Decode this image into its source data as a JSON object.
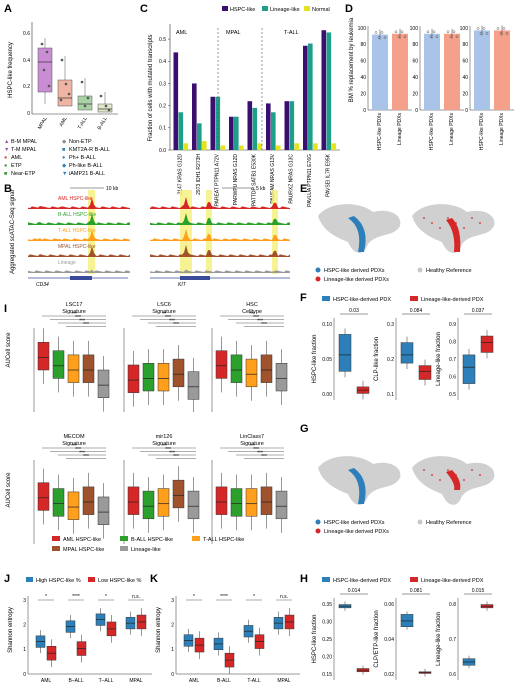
{
  "panels": {
    "A": {
      "letter": "A",
      "ylabel": "HSPC-like frequency",
      "yticks": [
        "0.6",
        "0.4",
        "0.2",
        "0"
      ],
      "categories": [
        "MPAL",
        "AML",
        "T-ALL",
        "B-ALL"
      ],
      "colors": [
        "#b26fc0",
        "#e8927c",
        "#7fb77e",
        "#c9d9b1"
      ],
      "legend": [
        {
          "label": "B-M MPAL",
          "marker": "▲",
          "color": "#9b59b6"
        },
        {
          "label": "Non-ETP",
          "marker": "◆",
          "color": "#8a8a8a"
        },
        {
          "label": "T-M MPAL",
          "marker": "▼",
          "color": "#9b59b6"
        },
        {
          "label": "KMT2A-R B-ALL",
          "marker": "■",
          "color": "#2c7fb8"
        },
        {
          "label": "AML",
          "marker": "●",
          "color": "#d94a3a"
        },
        {
          "label": "Ph+ B-ALL",
          "marker": "●",
          "color": "#2c7fb8"
        },
        {
          "label": "ETP",
          "marker": "●",
          "color": "#3a9a3a"
        },
        {
          "label": "Ph-like B-ALL",
          "marker": "◆",
          "color": "#2c7fb8"
        },
        {
          "label": "Near-ETP",
          "marker": "■",
          "color": "#3a9a3a"
        },
        {
          "label": "iAMP21 B-ALL",
          "marker": "▼",
          "color": "#2c7fb8"
        }
      ]
    },
    "B": {
      "letter": "B",
      "ylabel": "Aggregated scATAC-Seq signal",
      "scale_left": "10 kb",
      "scale_right": "5 kb",
      "tracks": [
        {
          "label": "AML HSPC-like",
          "color": "#d62728"
        },
        {
          "label": "B-ALL HSPC-like",
          "color": "#2ca02c"
        },
        {
          "label": "T-ALL HSPC-like",
          "color": "#ff9f1c"
        },
        {
          "label": "MPAL HSPC-like",
          "color": "#a0522d"
        },
        {
          "label": "Lineage",
          "color": "#9a9a9a"
        }
      ],
      "genes": [
        "CD34",
        "KIT"
      ]
    },
    "C": {
      "letter": "C",
      "ylabel": "Fraction of cells with mutated transcripts",
      "groups": [
        "AML",
        "MPAL",
        "T-ALL"
      ],
      "chart_data": {
        "type": "bar",
        "categories": [
          "2147 KRAS G12D",
          "2973 IDH1 R273H",
          "PAREAT PTPN11 A72V",
          "PARWPU NRAS G12D",
          "PATTDP SATB1 E530K",
          "PAUFAM NRAS G13V",
          "PAURXZ NRAS G13C",
          "PAVLUA PTPN11 E76G",
          "PAVSEI IL7R E95K"
        ],
        "series": [
          {
            "name": "HSPC-like",
            "color": "#3b0f6f",
            "values": [
              0.44,
              0.3,
              0.24,
              0.15,
              0.22,
              0.21,
              0.22,
              0.47,
              0.54
            ]
          },
          {
            "name": "Lineage-like",
            "color": "#1f9e89",
            "values": [
              0.17,
              0.12,
              0.24,
              0.15,
              0.19,
              0.17,
              0.22,
              0.48,
              0.53
            ]
          },
          {
            "name": "Normal",
            "color": "#e3e31f",
            "values": [
              0.03,
              0.04,
              0.02,
              0.02,
              0.03,
              0.02,
              0.03,
              0.03,
              0.03
            ]
          }
        ],
        "yticks": [
          "0.0",
          "0.1",
          "0.2",
          "0.3",
          "0.4",
          "0.5"
        ],
        "ylim": [
          0,
          0.55
        ]
      }
    },
    "D": {
      "letter": "D",
      "ylabel": "BM % replacement by leukemia",
      "yticks": [
        "0",
        "20",
        "40",
        "60",
        "80",
        "100"
      ],
      "chart_data": [
        {
          "type": "bar",
          "categories": [
            "HSPC-like PDXs",
            "Lineage PDXs"
          ],
          "values": [
            92,
            93
          ],
          "ylim": [
            0,
            100
          ]
        },
        {
          "type": "bar",
          "categories": [
            "HSPC-like PDXs",
            "Lineage PDXs"
          ],
          "values": [
            93,
            93
          ],
          "ylim": [
            0,
            100
          ]
        },
        {
          "type": "bar",
          "categories": [
            "HSPC-like PDXs",
            "Lineage PDXs"
          ],
          "values": [
            97,
            97
          ],
          "ylim": [
            0,
            100
          ]
        }
      ],
      "colors": [
        "#a9c4e8",
        "#f4a08a"
      ]
    },
    "E": {
      "letter": "E",
      "legend": [
        {
          "label": "HSPC-like derived PDXs",
          "color": "#2c7fb8"
        },
        {
          "label": "Healthy Reference",
          "color": "#c8c8c8"
        },
        {
          "label": "Lineage-like derived PDXs",
          "color": "#d62728"
        }
      ]
    },
    "F": {
      "letter": "F",
      "legend": [
        {
          "label": "HSPC-like-derived PDX",
          "color": "#2c7fb8"
        },
        {
          "label": "Lineage-like-derived PDX",
          "color": "#d62728"
        }
      ],
      "plots": [
        {
          "ylabel": "HSPC-like fraction",
          "p": "0.03",
          "yticks": [
            "0.10",
            "0.05",
            "0.00"
          ]
        },
        {
          "ylabel": "CLP-like fraction",
          "p": "0.084",
          "yticks": [
            "0.3",
            "0.2",
            "0.1"
          ]
        },
        {
          "ylabel": "Lineage-like fraction",
          "p": "0.037",
          "yticks": [
            "0.9",
            "0.8",
            "0.7",
            "0.6",
            "0.5"
          ]
        }
      ]
    },
    "G": {
      "letter": "G",
      "legend": [
        {
          "label": "HSPC-like derived PDXs",
          "color": "#2c7fb8"
        },
        {
          "label": "Healthy Reference",
          "color": "#c8c8c8"
        },
        {
          "label": "Lineage-like derived PDXs",
          "color": "#d62728"
        }
      ]
    },
    "H": {
      "letter": "H",
      "legend": [
        {
          "label": "HSPC-like-derived PDX",
          "color": "#2c7fb8"
        },
        {
          "label": "Lineage-like-derived PDX",
          "color": "#d62728"
        }
      ],
      "plots": [
        {
          "ylabel": "HSPC-like fraction",
          "p": "0.014",
          "yticks": [
            "0.35",
            "0.30",
            "0.25",
            "0.20",
            "0.15"
          ]
        },
        {
          "ylabel": "CLP/ETP-like fraction",
          "p": "0.081",
          "yticks": [
            "0.06",
            "0.04",
            "0.02"
          ]
        },
        {
          "ylabel": "Lineage-like fraction",
          "p": "0.015",
          "yticks": [
            "0.8",
            "0.7",
            "0.6"
          ]
        }
      ]
    },
    "I": {
      "letter": "I",
      "ylabel": "AUCell score",
      "plots": [
        {
          "title1": "LSC17",
          "title2": "Signature"
        },
        {
          "title1": "LSC6",
          "title2": "Signature"
        },
        {
          "title1": "HSC",
          "title2": "Celltype"
        },
        {
          "title1": "MECOM",
          "title2": "Signature"
        },
        {
          "title1": "mir126",
          "title2": "Signature"
        },
        {
          "title1": "LinClass7",
          "title2": "Signature"
        }
      ],
      "legend": [
        {
          "label": "AML HSPC-like",
          "color": "#d62728"
        },
        {
          "label": "B-ALL HSPC-like",
          "color": "#2ca02c"
        },
        {
          "label": "T-ALL HSPC-like",
          "color": "#ff9f1c"
        },
        {
          "label": "MPAL HSPC-like",
          "color": "#a0522d"
        },
        {
          "label": "Lineage-like",
          "color": "#9a9a9a"
        }
      ],
      "sig": [
        "***",
        "***",
        "***",
        "***"
      ],
      "sig2": [
        "**",
        "***",
        "***",
        "***"
      ]
    },
    "J": {
      "letter": "J",
      "ylabel": "Shannon entropy",
      "legend": [
        {
          "label": "High HSPC-like %",
          "color": "#2c7fb8"
        },
        {
          "label": "Low HSPC-like %",
          "color": "#d62728"
        }
      ],
      "categories": [
        "AML",
        "B–ALL",
        "T–ALL",
        "MPAL"
      ],
      "sig": [
        "*",
        "****",
        "*",
        "n.s."
      ],
      "yticks": [
        "3",
        "2",
        "1",
        "0"
      ]
    },
    "K": {
      "letter": "K",
      "ylabel": "Shannon entropy",
      "categories": [
        "AML",
        "B-ALL",
        "T-ALL",
        "MPAL"
      ],
      "sig": [
        "*",
        "****",
        "*",
        "n.s."
      ],
      "yticks": [
        "3",
        "2",
        "1",
        "0"
      ]
    }
  }
}
